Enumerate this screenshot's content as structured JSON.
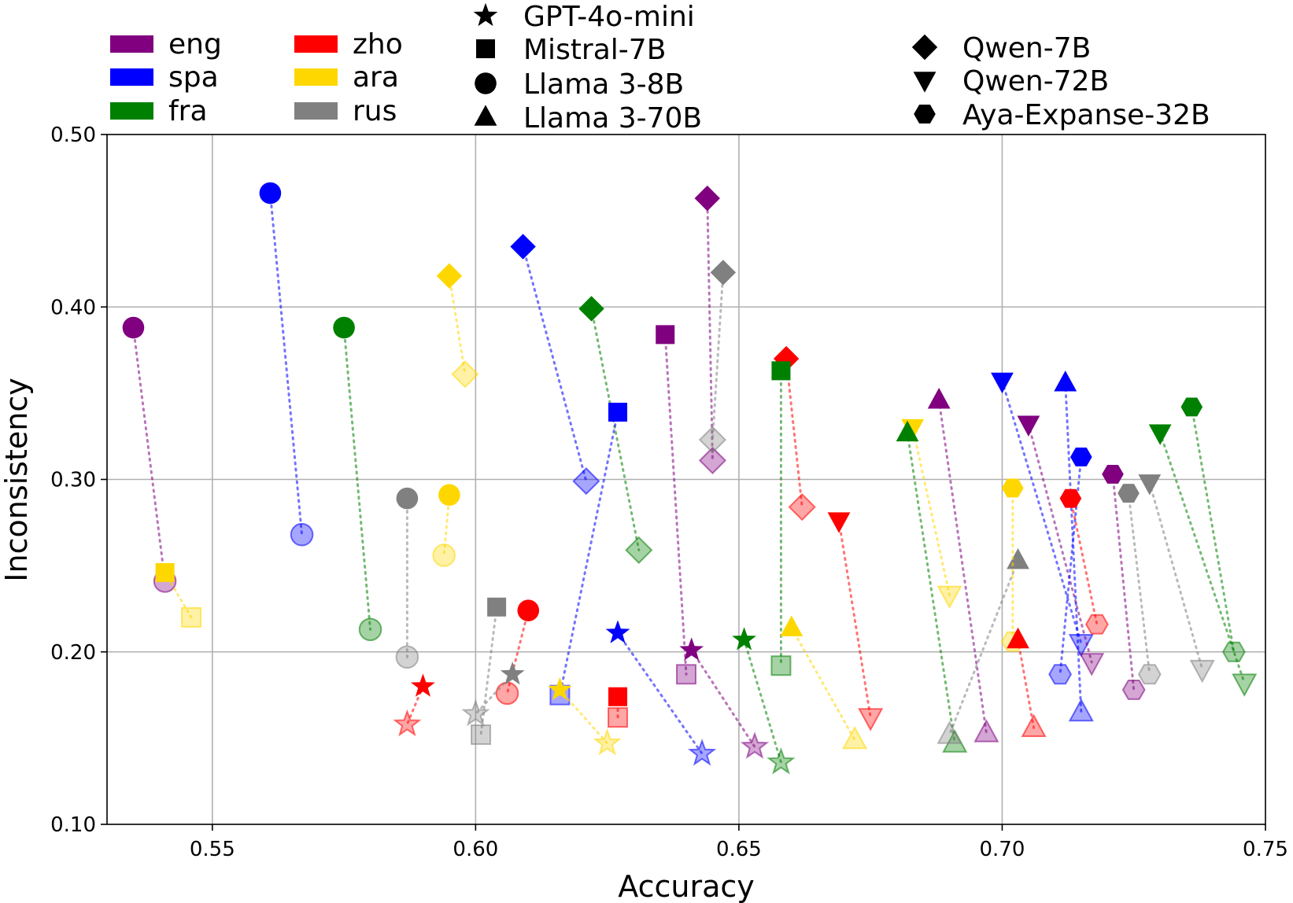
{
  "chart_data": {
    "type": "scatter",
    "xlabel": "Accuracy",
    "ylabel": "Inconsistency",
    "xlim": [
      0.53,
      0.75
    ],
    "ylim": [
      0.1,
      0.5
    ],
    "x_ticks": [
      "0.55",
      "0.60",
      "0.65",
      "0.70",
      "0.75"
    ],
    "y_ticks": [
      "0.10",
      "0.20",
      "0.30",
      "0.40",
      "0.50"
    ],
    "grid": true,
    "legend_placement": "top, above plot",
    "languages": [
      {
        "code": "eng",
        "color": "#800080"
      },
      {
        "code": "spa",
        "color": "#0000ff"
      },
      {
        "code": "fra",
        "color": "#008000"
      },
      {
        "code": "zho",
        "color": "#ff0000"
      },
      {
        "code": "ara",
        "color": "#ffd700"
      },
      {
        "code": "rus",
        "color": "#808080"
      }
    ],
    "models": [
      {
        "name": "GPT-4o-mini",
        "marker": "star"
      },
      {
        "name": "Mistral-7B",
        "marker": "square"
      },
      {
        "name": "Llama 3-8B",
        "marker": "circle"
      },
      {
        "name": "Llama 3-70B",
        "marker": "triangle-up"
      },
      {
        "name": "Qwen-7B",
        "marker": "diamond"
      },
      {
        "name": "Qwen-72B",
        "marker": "triangle-down"
      },
      {
        "name": "Aya-Expanse-32B",
        "marker": "hexagon"
      }
    ],
    "note": "Each pair: 'from' = solid marker, 'to' = faded marker, joined by a dotted line.",
    "pairs": [
      {
        "model": "Llama 3-8B",
        "lang": "eng",
        "from": [
          0.535,
          0.388
        ],
        "to": [
          0.541,
          0.241
        ]
      },
      {
        "model": "Mistral-7B",
        "lang": "ara",
        "from": [
          0.541,
          0.246
        ],
        "to": [
          0.546,
          0.22
        ]
      },
      {
        "model": "Llama 3-8B",
        "lang": "spa",
        "from": [
          0.561,
          0.466
        ],
        "to": [
          0.567,
          0.268
        ]
      },
      {
        "model": "Llama 3-8B",
        "lang": "fra",
        "from": [
          0.575,
          0.388
        ],
        "to": [
          0.58,
          0.213
        ]
      },
      {
        "model": "Llama 3-8B",
        "lang": "rus",
        "from": [
          0.587,
          0.289
        ],
        "to": [
          0.587,
          0.197
        ]
      },
      {
        "model": "Llama 3-8B",
        "lang": "ara",
        "from": [
          0.595,
          0.291
        ],
        "to": [
          0.594,
          0.256
        ]
      },
      {
        "model": "Qwen-7B",
        "lang": "ara",
        "from": [
          0.595,
          0.418
        ],
        "to": [
          0.598,
          0.361
        ]
      },
      {
        "model": "Qwen-7B",
        "lang": "spa",
        "from": [
          0.609,
          0.435
        ],
        "to": [
          0.621,
          0.299
        ]
      },
      {
        "model": "Qwen-7B",
        "lang": "fra",
        "from": [
          0.622,
          0.399
        ],
        "to": [
          0.631,
          0.259
        ]
      },
      {
        "model": "Qwen-7B",
        "lang": "eng",
        "from": [
          0.644,
          0.463
        ],
        "to": [
          0.645,
          0.311
        ]
      },
      {
        "model": "Qwen-7B",
        "lang": "rus",
        "from": [
          0.647,
          0.42
        ],
        "to": [
          0.645,
          0.323
        ]
      },
      {
        "model": "Qwen-7B",
        "lang": "zho",
        "from": [
          0.659,
          0.37
        ],
        "to": [
          0.662,
          0.284
        ]
      },
      {
        "model": "Mistral-7B",
        "lang": "eng",
        "from": [
          0.636,
          0.384
        ],
        "to": [
          0.64,
          0.187
        ]
      },
      {
        "model": "Mistral-7B",
        "lang": "spa",
        "from": [
          0.627,
          0.339
        ],
        "to": [
          0.616,
          0.175
        ]
      },
      {
        "model": "Mistral-7B",
        "lang": "fra",
        "from": [
          0.658,
          0.363
        ],
        "to": [
          0.658,
          0.192
        ]
      },
      {
        "model": "Mistral-7B",
        "lang": "rus",
        "from": [
          0.604,
          0.226
        ],
        "to": [
          0.601,
          0.152
        ]
      },
      {
        "model": "Mistral-7B",
        "lang": "zho",
        "from": [
          0.627,
          0.174
        ],
        "to": [
          0.627,
          0.162
        ]
      },
      {
        "model": "Llama 3-8B",
        "lang": "zho",
        "from": [
          0.61,
          0.224
        ],
        "to": [
          0.606,
          0.176
        ]
      },
      {
        "model": "GPT-4o-mini",
        "lang": "zho",
        "from": [
          0.59,
          0.18
        ],
        "to": [
          0.587,
          0.158
        ]
      },
      {
        "model": "GPT-4o-mini",
        "lang": "rus",
        "from": [
          0.607,
          0.187
        ],
        "to": [
          0.6,
          0.164
        ]
      },
      {
        "model": "GPT-4o-mini",
        "lang": "ara",
        "from": [
          0.616,
          0.178
        ],
        "to": [
          0.625,
          0.147
        ]
      },
      {
        "model": "GPT-4o-mini",
        "lang": "spa",
        "from": [
          0.627,
          0.211
        ],
        "to": [
          0.643,
          0.141
        ]
      },
      {
        "model": "GPT-4o-mini",
        "lang": "eng",
        "from": [
          0.641,
          0.201
        ],
        "to": [
          0.653,
          0.145
        ]
      },
      {
        "model": "GPT-4o-mini",
        "lang": "fra",
        "from": [
          0.651,
          0.207
        ],
        "to": [
          0.658,
          0.136
        ]
      },
      {
        "model": "Llama 3-70B",
        "lang": "ara",
        "from": [
          0.66,
          0.214
        ],
        "to": [
          0.672,
          0.149
        ]
      },
      {
        "model": "Qwen-72B",
        "lang": "zho",
        "from": [
          0.669,
          0.276
        ],
        "to": [
          0.675,
          0.162
        ]
      },
      {
        "model": "Qwen-72B",
        "lang": "ara",
        "from": [
          0.683,
          0.33
        ],
        "to": [
          0.69,
          0.233
        ]
      },
      {
        "model": "Llama 3-70B",
        "lang": "fra",
        "from": [
          0.682,
          0.327
        ],
        "to": [
          0.691,
          0.147
        ]
      },
      {
        "model": "Llama 3-70B",
        "lang": "eng",
        "from": [
          0.688,
          0.346
        ],
        "to": [
          0.697,
          0.153
        ]
      },
      {
        "model": "Llama 3-70B",
        "lang": "rus",
        "from": [
          0.703,
          0.253
        ],
        "to": [
          0.69,
          0.152
        ]
      },
      {
        "model": "Qwen-72B",
        "lang": "spa",
        "from": [
          0.7,
          0.357
        ],
        "to": [
          0.715,
          0.205
        ]
      },
      {
        "model": "Qwen-72B",
        "lang": "eng",
        "from": [
          0.705,
          0.332
        ],
        "to": [
          0.717,
          0.194
        ]
      },
      {
        "model": "Llama 3-70B",
        "lang": "spa",
        "from": [
          0.712,
          0.356
        ],
        "to": [
          0.715,
          0.165
        ]
      },
      {
        "model": "Aya-Expanse-32B",
        "lang": "ara",
        "from": [
          0.702,
          0.295
        ],
        "to": [
          0.702,
          0.206
        ]
      },
      {
        "model": "Aya-Expanse-32B",
        "lang": "spa",
        "from": [
          0.715,
          0.313
        ],
        "to": [
          0.711,
          0.187
        ]
      },
      {
        "model": "Aya-Expanse-32B",
        "lang": "zho",
        "from": [
          0.713,
          0.289
        ],
        "to": [
          0.718,
          0.216
        ]
      },
      {
        "model": "Llama 3-70B",
        "lang": "zho",
        "from": [
          0.703,
          0.207
        ],
        "to": [
          0.706,
          0.156
        ]
      },
      {
        "model": "Aya-Expanse-32B",
        "lang": "eng",
        "from": [
          0.721,
          0.303
        ],
        "to": [
          0.725,
          0.178
        ]
      },
      {
        "model": "Aya-Expanse-32B",
        "lang": "rus",
        "from": [
          0.724,
          0.292
        ],
        "to": [
          0.728,
          0.187
        ]
      },
      {
        "model": "Qwen-72B",
        "lang": "rus",
        "from": [
          0.728,
          0.298
        ],
        "to": [
          0.738,
          0.19
        ]
      },
      {
        "model": "Qwen-72B",
        "lang": "fra",
        "from": [
          0.73,
          0.327
        ],
        "to": [
          0.746,
          0.182
        ]
      },
      {
        "model": "Aya-Expanse-32B",
        "lang": "fra",
        "from": [
          0.736,
          0.342
        ],
        "to": [
          0.744,
          0.2
        ]
      }
    ]
  }
}
